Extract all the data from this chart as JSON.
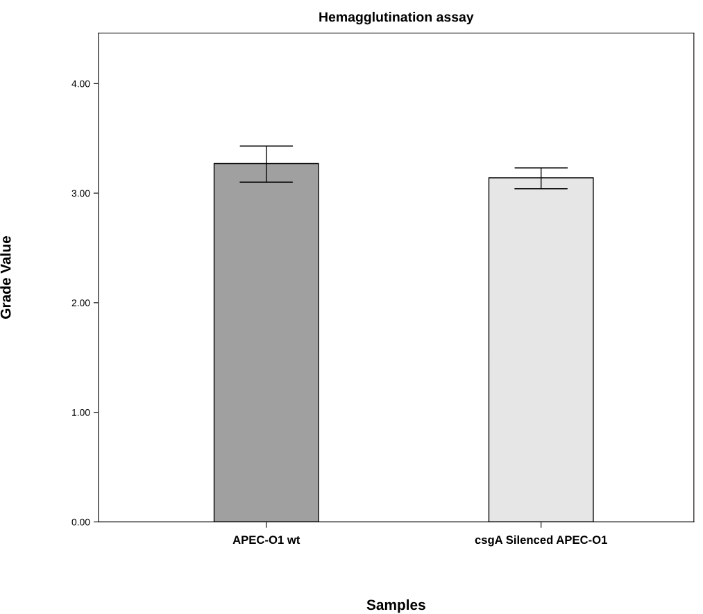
{
  "chart_data": {
    "type": "bar",
    "title": "Hemagglutination assay",
    "xlabel": "Samples",
    "ylabel": "Grade Value",
    "categories": [
      "APEC-O1 wt",
      "csgA Silenced APEC-O1"
    ],
    "values": [
      3.27,
      3.14
    ],
    "colors": [
      "#a0a0a0",
      "#e6e6e6"
    ],
    "errors": [
      [
        3.1,
        3.43
      ],
      [
        3.04,
        3.23
      ]
    ],
    "ylim": [
      0,
      4.46
    ],
    "yticks": [
      {
        "value": 0,
        "label": "0.00"
      },
      {
        "value": 1,
        "label": "1.00"
      },
      {
        "value": 2,
        "label": "2.00"
      },
      {
        "value": 3,
        "label": "3.00"
      },
      {
        "value": 4,
        "label": "4.00"
      }
    ],
    "grid": false
  }
}
